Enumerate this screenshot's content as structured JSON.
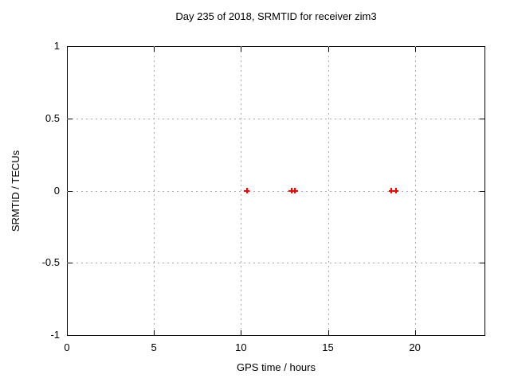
{
  "chart_data": {
    "type": "scatter",
    "title": "Day 235 of 2018, SRMTID for receiver zim3",
    "xlabel": "GPS time / hours",
    "ylabel": "SRMTID / TECUs",
    "xlim": [
      0,
      24
    ],
    "ylim": [
      -1,
      1
    ],
    "xticks": [
      0,
      5,
      10,
      15,
      20
    ],
    "yticks": [
      1,
      0.5,
      0,
      -0.5,
      -1
    ],
    "grid": true,
    "legend": "none",
    "marker": "plus",
    "marker_color": "#ff0000",
    "series": [
      {
        "name": "SRMTID",
        "x": [
          10.35,
          12.9,
          13.1,
          18.65,
          18.9
        ],
        "y": [
          0,
          0,
          0,
          0,
          0
        ]
      }
    ]
  }
}
